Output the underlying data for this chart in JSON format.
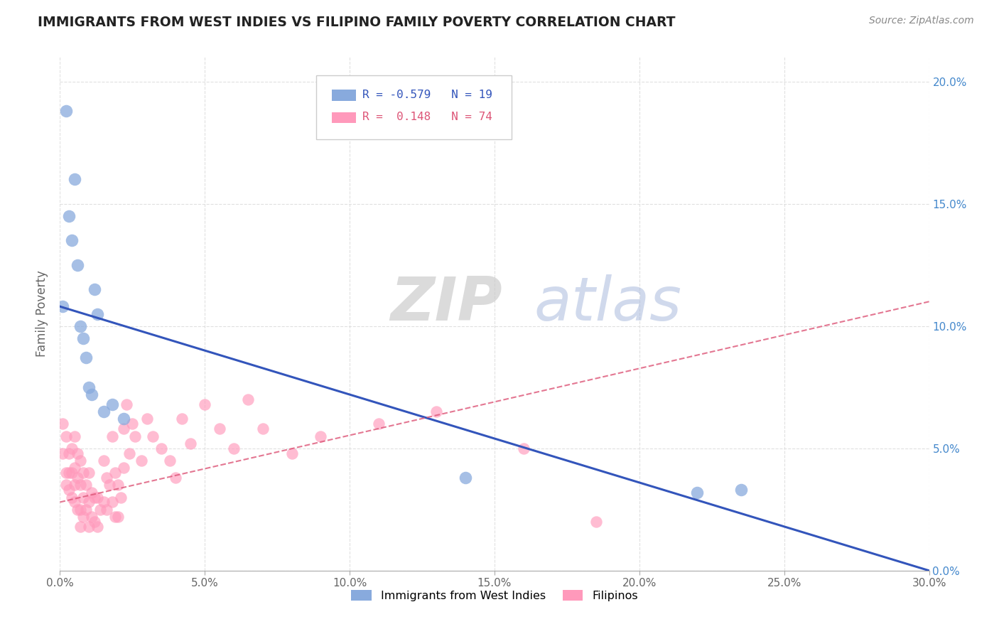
{
  "title": "IMMIGRANTS FROM WEST INDIES VS FILIPINO FAMILY POVERTY CORRELATION CHART",
  "source": "Source: ZipAtlas.com",
  "ylabel": "Family Poverty",
  "xlim": [
    0.0,
    0.3
  ],
  "ylim": [
    0.0,
    0.21
  ],
  "xticks": [
    0.0,
    0.05,
    0.1,
    0.15,
    0.2,
    0.25,
    0.3
  ],
  "xtick_labels": [
    "0.0%",
    "5.0%",
    "10.0%",
    "15.0%",
    "20.0%",
    "25.0%",
    "30.0%"
  ],
  "yticks": [
    0.0,
    0.05,
    0.1,
    0.15,
    0.2
  ],
  "ytick_labels_right": [
    "0.0%",
    "5.0%",
    "10.0%",
    "15.0%",
    "20.0%"
  ],
  "blue_color": "#88aadd",
  "pink_color": "#ff99bb",
  "blue_line_color": "#3355bb",
  "pink_line_color": "#dd5577",
  "blue_label": "Immigrants from West Indies",
  "pink_label": "Filipinos",
  "blue_R": -0.579,
  "blue_N": 19,
  "pink_R": 0.148,
  "pink_N": 74,
  "title_color": "#222222",
  "source_color": "#888888",
  "grid_color": "#dddddd",
  "right_axis_color": "#4488cc",
  "blue_line_start_y": 0.108,
  "blue_line_end_x": 0.3,
  "blue_line_end_y": 0.0,
  "pink_line_start_x": 0.0,
  "pink_line_start_y": 0.028,
  "pink_line_end_x": 0.3,
  "pink_line_end_y": 0.11,
  "blue_points_x": [
    0.002,
    0.003,
    0.004,
    0.005,
    0.006,
    0.007,
    0.008,
    0.009,
    0.01,
    0.011,
    0.012,
    0.013,
    0.015,
    0.018,
    0.022,
    0.14,
    0.22,
    0.235,
    0.001
  ],
  "blue_points_y": [
    0.188,
    0.145,
    0.135,
    0.16,
    0.125,
    0.1,
    0.095,
    0.087,
    0.075,
    0.072,
    0.115,
    0.105,
    0.065,
    0.068,
    0.062,
    0.038,
    0.032,
    0.033,
    0.108
  ],
  "pink_points_x": [
    0.001,
    0.001,
    0.002,
    0.002,
    0.002,
    0.003,
    0.003,
    0.003,
    0.004,
    0.004,
    0.004,
    0.005,
    0.005,
    0.005,
    0.005,
    0.006,
    0.006,
    0.006,
    0.007,
    0.007,
    0.007,
    0.007,
    0.008,
    0.008,
    0.008,
    0.009,
    0.009,
    0.01,
    0.01,
    0.01,
    0.011,
    0.011,
    0.012,
    0.012,
    0.013,
    0.013,
    0.014,
    0.015,
    0.015,
    0.016,
    0.016,
    0.017,
    0.018,
    0.018,
    0.019,
    0.019,
    0.02,
    0.02,
    0.021,
    0.022,
    0.022,
    0.023,
    0.024,
    0.025,
    0.026,
    0.028,
    0.03,
    0.032,
    0.035,
    0.038,
    0.04,
    0.042,
    0.045,
    0.05,
    0.055,
    0.06,
    0.065,
    0.07,
    0.08,
    0.09,
    0.11,
    0.13,
    0.16,
    0.185
  ],
  "pink_points_y": [
    0.06,
    0.048,
    0.055,
    0.04,
    0.035,
    0.048,
    0.04,
    0.033,
    0.05,
    0.04,
    0.03,
    0.055,
    0.042,
    0.035,
    0.028,
    0.048,
    0.038,
    0.025,
    0.045,
    0.035,
    0.025,
    0.018,
    0.04,
    0.03,
    0.022,
    0.035,
    0.025,
    0.04,
    0.028,
    0.018,
    0.032,
    0.022,
    0.03,
    0.02,
    0.03,
    0.018,
    0.025,
    0.045,
    0.028,
    0.038,
    0.025,
    0.035,
    0.055,
    0.028,
    0.04,
    0.022,
    0.035,
    0.022,
    0.03,
    0.058,
    0.042,
    0.068,
    0.048,
    0.06,
    0.055,
    0.045,
    0.062,
    0.055,
    0.05,
    0.045,
    0.038,
    0.062,
    0.052,
    0.068,
    0.058,
    0.05,
    0.07,
    0.058,
    0.048,
    0.055,
    0.06,
    0.065,
    0.05,
    0.02
  ]
}
